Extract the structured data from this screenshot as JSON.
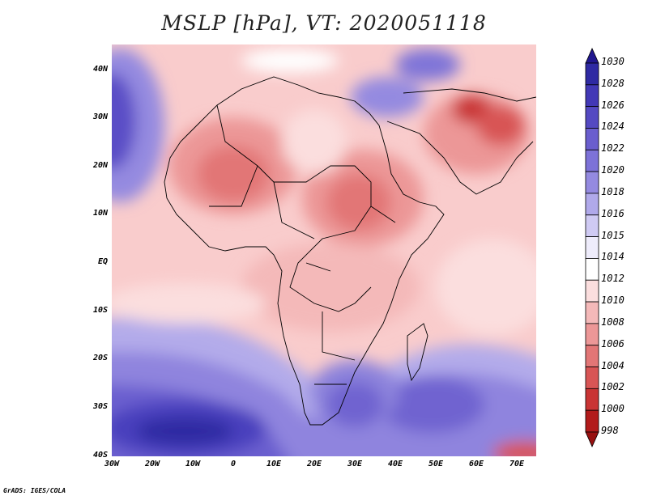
{
  "title": "MSLP [hPa], VT: 2020051118",
  "y_axis_labels": [
    "40N",
    "30N",
    "20N",
    "10N",
    "EQ",
    "10S",
    "20S",
    "30S",
    "40S"
  ],
  "x_axis_labels": [
    "30W",
    "20W",
    "10W",
    "0",
    "10E",
    "20E",
    "30E",
    "40E",
    "50E",
    "60E",
    "70E"
  ],
  "colorbar": {
    "labels": [
      "1030",
      "1028",
      "1026",
      "1024",
      "1022",
      "1020",
      "1018",
      "1016",
      "1015",
      "1014",
      "1012",
      "1010",
      "1008",
      "1006",
      "1004",
      "1002",
      "1000",
      "998"
    ],
    "colors": [
      "#21178f",
      "#2f2aa3",
      "#4238b6",
      "#5449c2",
      "#6a5ece",
      "#7d72d8",
      "#948ae0",
      "#b0a9ea",
      "#cfcaf3",
      "#eeecfb",
      "#ffffff",
      "#fbdede",
      "#f4b9b9",
      "#ec9797",
      "#e27676",
      "#d85555",
      "#c93434",
      "#b21b1b",
      "#971010"
    ]
  },
  "credit": "GrADS: IGES/COLA"
}
